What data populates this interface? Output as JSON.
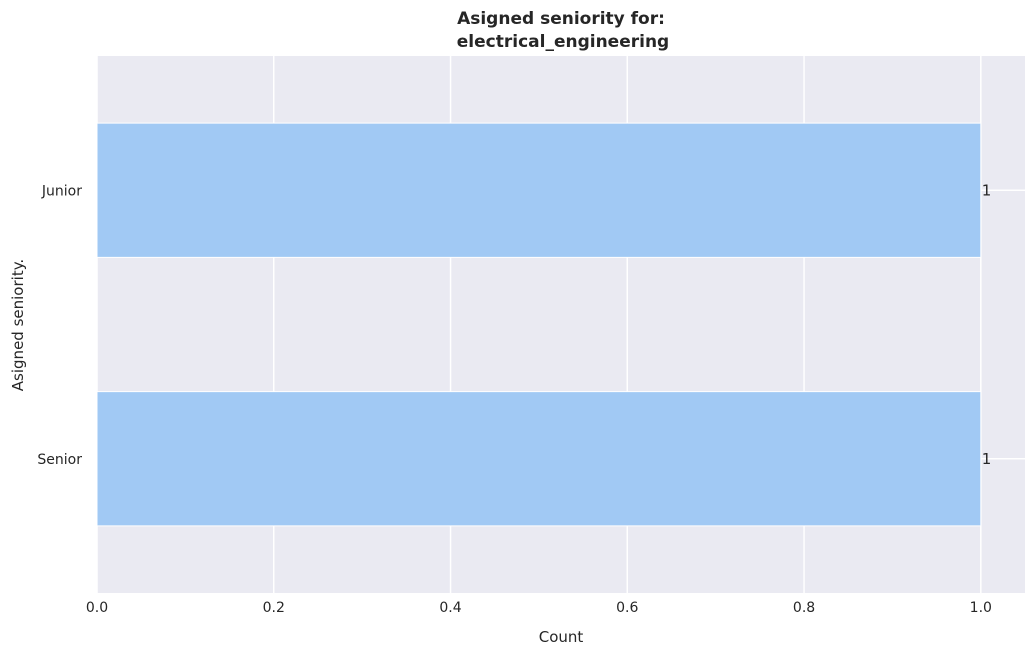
{
  "chart_data": {
    "type": "bar",
    "orientation": "horizontal",
    "title_lines": [
      "Asigned seniority for:",
      "electrical_engineering"
    ],
    "xlabel": "Count",
    "ylabel": "Asigned seniority.",
    "categories": [
      "Junior",
      "Senior"
    ],
    "values": [
      1,
      1
    ],
    "data_labels": [
      "1",
      "1"
    ],
    "xlim": [
      0,
      1.05
    ],
    "xticks": [
      0.0,
      0.2,
      0.4,
      0.6,
      0.8,
      1.0
    ],
    "xtick_labels": [
      "0.0",
      "0.2",
      "0.4",
      "0.6",
      "0.8",
      "1.0"
    ],
    "grid": true,
    "colors": {
      "bar": "#a1c9f4",
      "plot_background": "#eaeaf2",
      "grid": "#ffffff",
      "text": "#262626"
    }
  }
}
